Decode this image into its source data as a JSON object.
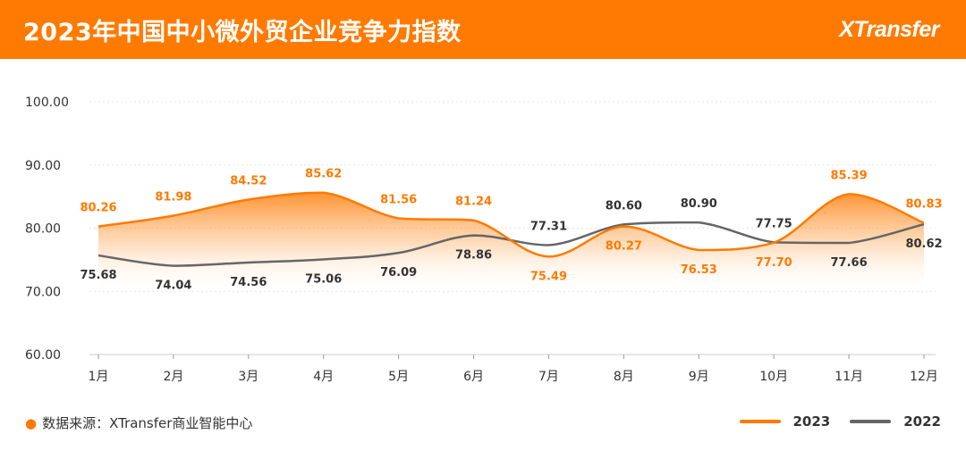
{
  "header": {
    "title": "2023年中国中小微外贸企业竞争力指数",
    "logo_text": "XTransfer"
  },
  "footer": {
    "source": "数据来源：XTransfer商业智能中心"
  },
  "colors": {
    "brand": "#FF7A00",
    "series_2023": "#FF7A00",
    "series_2022": "#666666",
    "grid": "#E6E6E6",
    "axis_text": "#333333"
  },
  "chart_data": {
    "type": "line",
    "categories": [
      "1月",
      "2月",
      "3月",
      "4月",
      "5月",
      "6月",
      "7月",
      "8月",
      "9月",
      "10月",
      "11月",
      "12月"
    ],
    "ylim": [
      60,
      100
    ],
    "yticks": [
      "60.00",
      "70.00",
      "80.00",
      "90.00",
      "100.00"
    ],
    "grid": true,
    "legend_position": "bottom-right",
    "series": [
      {
        "name": "2023",
        "color": "#FF7A00",
        "values": [
          80.26,
          81.98,
          84.52,
          85.62,
          81.56,
          81.24,
          75.49,
          80.27,
          76.53,
          77.7,
          85.39,
          80.83
        ],
        "labels": [
          "80.26",
          "81.98",
          "84.52",
          "85.62",
          "81.56",
          "81.24",
          "75.49",
          "80.27",
          "76.53",
          "77.70",
          "85.39",
          "80.83"
        ]
      },
      {
        "name": "2022",
        "color": "#666666",
        "values": [
          75.68,
          74.04,
          74.56,
          75.06,
          76.09,
          78.86,
          77.31,
          80.6,
          80.9,
          77.75,
          77.66,
          80.62
        ],
        "labels": [
          "75.68",
          "74.04",
          "74.56",
          "75.06",
          "76.09",
          "78.86",
          "77.31",
          "80.60",
          "80.90",
          "77.75",
          "77.66",
          "80.62"
        ]
      }
    ]
  }
}
